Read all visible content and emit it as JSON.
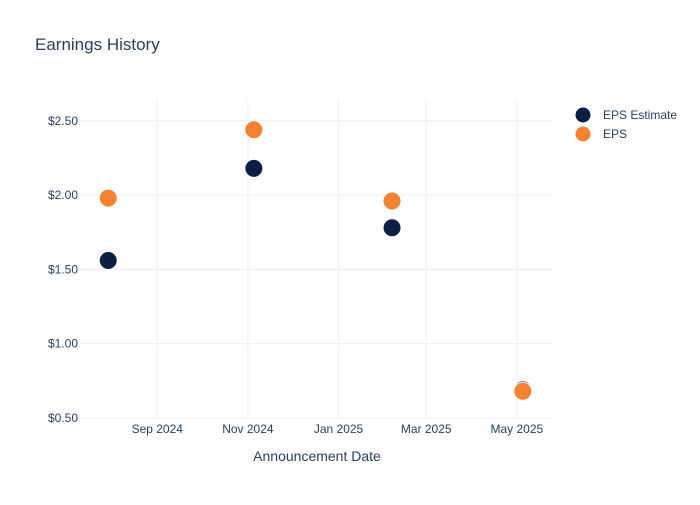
{
  "chart_data": {
    "type": "scatter",
    "title": "Earnings History",
    "xlabel": "Announcement Date",
    "ylabel": "",
    "x_tick_labels": [
      {
        "date": "2024-09-01",
        "label": "Sep 2024"
      },
      {
        "date": "2024-11-01",
        "label": "Nov 2024"
      },
      {
        "date": "2025-01-01",
        "label": "Jan 2025"
      },
      {
        "date": "2025-03-01",
        "label": "Mar 2025"
      },
      {
        "date": "2025-05-01",
        "label": "May 2025"
      }
    ],
    "y_ticks": [
      {
        "value": 0.5,
        "label": "$0.50"
      },
      {
        "value": 1.0,
        "label": "$1.00"
      },
      {
        "value": 1.5,
        "label": "$1.50"
      },
      {
        "value": 2.0,
        "label": "$2.00"
      },
      {
        "value": 2.5,
        "label": "$2.50"
      }
    ],
    "xlim": [
      "2024-07-11",
      "2025-05-26"
    ],
    "ylim": [
      0.5,
      2.64
    ],
    "grid": true,
    "legend_position": "top-right",
    "series": [
      {
        "name": "EPS Estimate",
        "color": "#0b1f44",
        "points": [
          {
            "x": "2024-07-30",
            "y": 1.56
          },
          {
            "x": "2024-11-05",
            "y": 2.18
          },
          {
            "x": "2025-02-06",
            "y": 1.78
          },
          {
            "x": "2025-05-05",
            "y": 0.69
          }
        ]
      },
      {
        "name": "EPS",
        "color": "#f58232",
        "points": [
          {
            "x": "2024-07-30",
            "y": 1.98
          },
          {
            "x": "2024-11-05",
            "y": 2.44
          },
          {
            "x": "2025-02-06",
            "y": 1.96
          },
          {
            "x": "2025-05-05",
            "y": 0.68
          }
        ]
      }
    ]
  }
}
